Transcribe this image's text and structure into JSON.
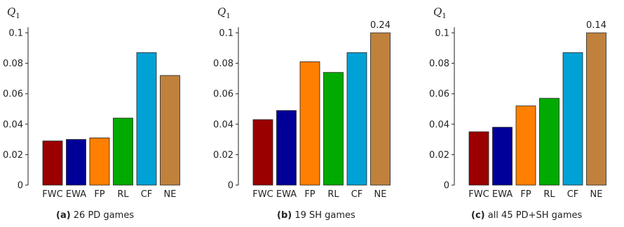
{
  "chart_data": [
    {
      "type": "bar",
      "ylabel": "Q",
      "ylabel_sub": "1",
      "categories": [
        "FWC",
        "EWA",
        "FP",
        "RL",
        "CF",
        "NE"
      ],
      "values": [
        0.029,
        0.03,
        0.031,
        0.044,
        0.087,
        0.072
      ],
      "colors": [
        "#9b0000",
        "#000099",
        "#ff7f00",
        "#00aa00",
        "#00a2d6",
        "#c0813c"
      ],
      "yticks": [
        "0",
        "0.02",
        "0.04",
        "0.06",
        "0.08",
        "0.1"
      ],
      "ylim": [
        0,
        0.1
      ],
      "caption_label": "(a)",
      "caption_text": "26 PD games"
    },
    {
      "type": "bar",
      "ylabel": "Q",
      "ylabel_sub": "1",
      "categories": [
        "FWC",
        "EWA",
        "FP",
        "RL",
        "CF",
        "NE"
      ],
      "values": [
        0.043,
        0.049,
        0.081,
        0.074,
        0.087,
        0.24
      ],
      "value_labels": [
        "",
        "",
        "",
        "",
        "",
        "0.24"
      ],
      "colors": [
        "#9b0000",
        "#000099",
        "#ff7f00",
        "#00aa00",
        "#00a2d6",
        "#c0813c"
      ],
      "yticks": [
        "0",
        "0.02",
        "0.04",
        "0.06",
        "0.08",
        "0.1"
      ],
      "ylim": [
        0,
        0.1
      ],
      "caption_label": "(b)",
      "caption_text": "19 SH games"
    },
    {
      "type": "bar",
      "ylabel": "Q",
      "ylabel_sub": "1",
      "categories": [
        "FWC",
        "EWA",
        "FP",
        "RL",
        "CF",
        "NE"
      ],
      "values": [
        0.035,
        0.038,
        0.052,
        0.057,
        0.087,
        0.14
      ],
      "value_labels": [
        "",
        "",
        "",
        "",
        "",
        "0.14"
      ],
      "colors": [
        "#9b0000",
        "#000099",
        "#ff7f00",
        "#00aa00",
        "#00a2d6",
        "#c0813c"
      ],
      "yticks": [
        "0",
        "0.02",
        "0.04",
        "0.06",
        "0.08",
        "0.1"
      ],
      "ylim": [
        0,
        0.1
      ],
      "caption_label": "(c)",
      "caption_text": "all 45 PD+SH games"
    }
  ]
}
